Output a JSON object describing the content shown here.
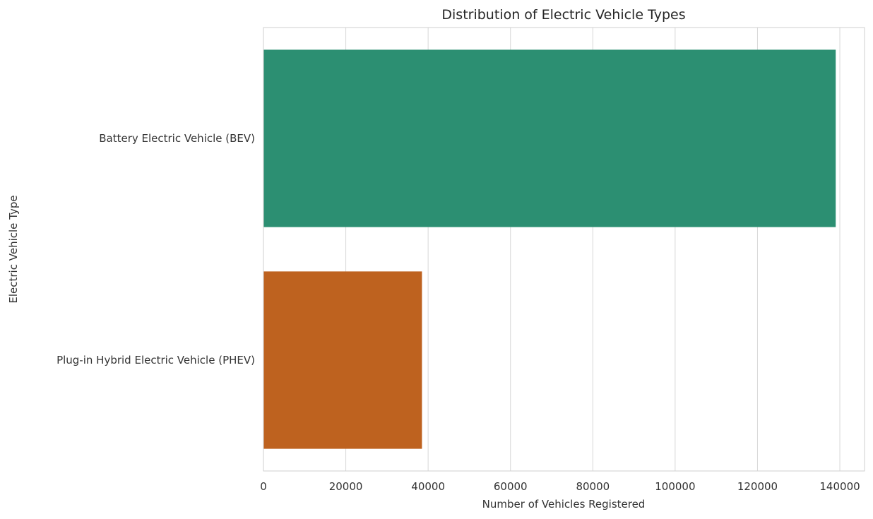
{
  "chart_data": {
    "type": "bar",
    "orientation": "horizontal",
    "title": "Distribution of Electric Vehicle Types",
    "xlabel": "Number of Vehicles Registered",
    "ylabel": "Electric Vehicle Type",
    "categories": [
      "Battery Electric Vehicle (BEV)",
      "Plug-in Hybrid Electric Vehicle (PHEV)"
    ],
    "values": [
      139000,
      38500
    ],
    "colors": [
      "#2c8f72",
      "#be621f"
    ],
    "xlim": [
      0,
      146000
    ],
    "xticks": [
      0,
      20000,
      40000,
      60000,
      80000,
      100000,
      120000,
      140000
    ],
    "xtick_labels": [
      "0",
      "20000",
      "40000",
      "60000",
      "80000",
      "100000",
      "120000",
      "140000"
    ],
    "grid": true,
    "legend": false
  }
}
